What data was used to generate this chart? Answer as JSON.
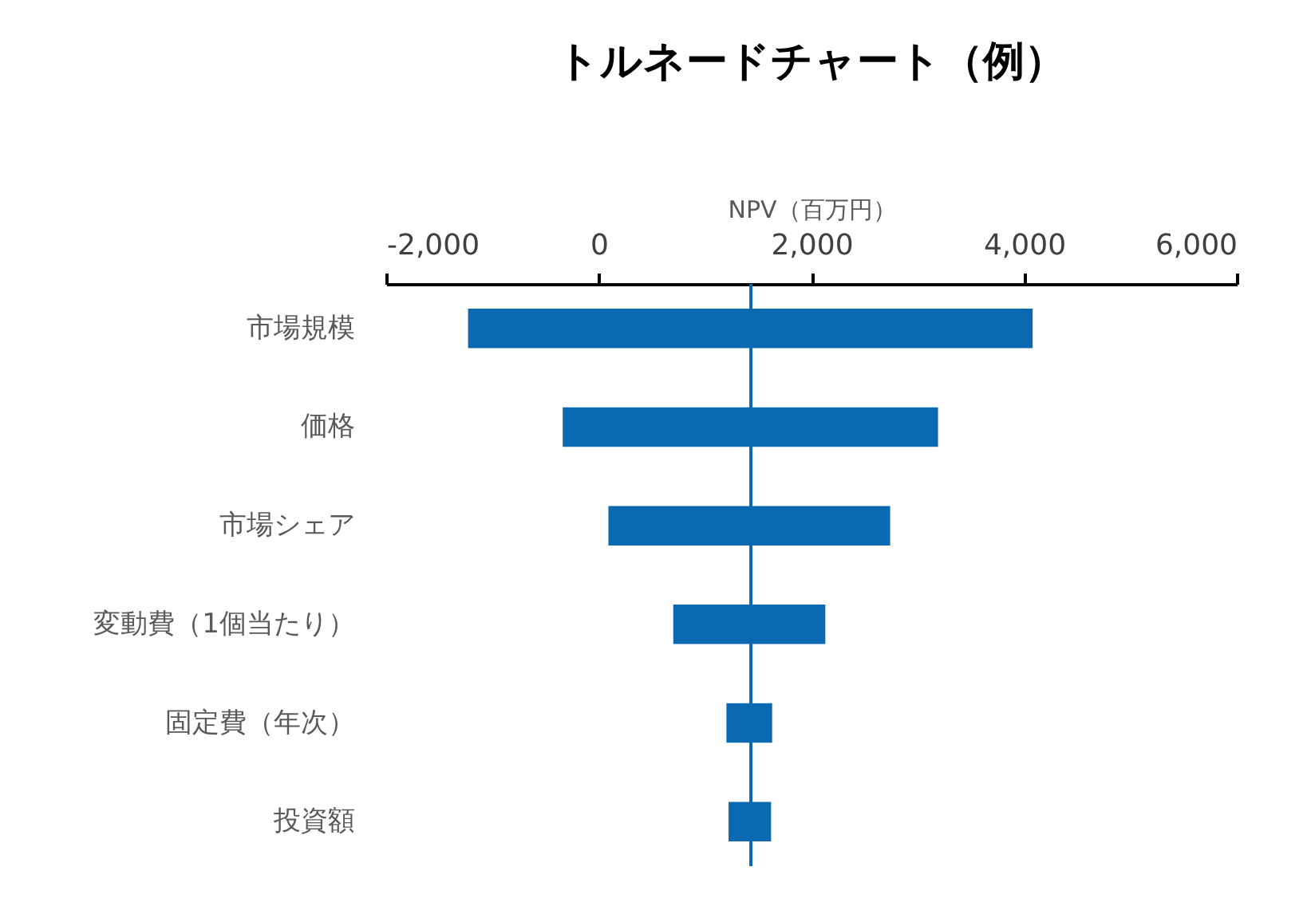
{
  "chart_data": {
    "type": "bar",
    "orientation": "horizontal",
    "title": "トルネードチャート（例）",
    "xlabel": "NPV（百万円）",
    "categories": [
      "市場規模",
      "価格",
      "市場シェア",
      "変動費（1個当たり）",
      "固定費（年次）",
      "投資額"
    ],
    "base": [
      -1230,
      -340,
      90,
      700,
      1200,
      1220
    ],
    "values": [
      5310,
      3530,
      2650,
      1430,
      430,
      400
    ],
    "color": "#0a69b0",
    "xlim": [
      -2000,
      6000
    ],
    "xticks": [
      {
        "value": -2000,
        "label": "-2,000"
      },
      0,
      {
        "value": 2000,
        "label": "2,000"
      },
      {
        "value": 4000,
        "label": "4,000"
      },
      {
        "value": 6000,
        "label": "6,000"
      }
    ],
    "ref_lines": [
      {
        "axis": "x",
        "value": 1430,
        "color": "#0a69b0"
      }
    ],
    "grid": false
  }
}
